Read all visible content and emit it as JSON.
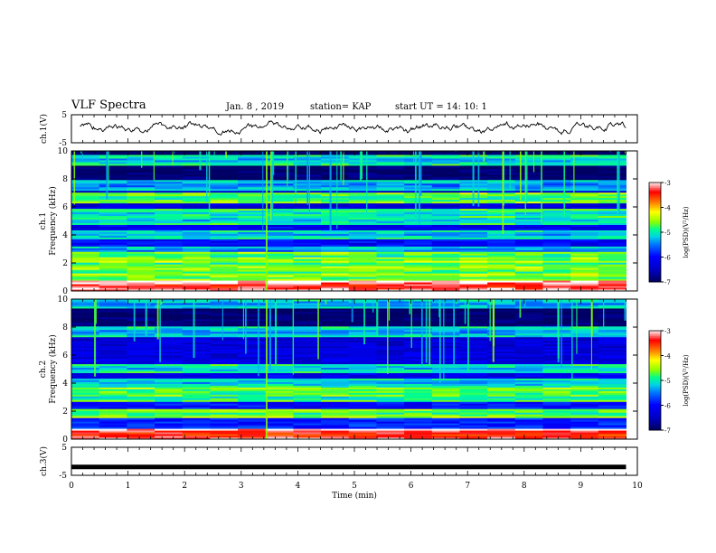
{
  "header": {
    "title": "VLF Spectra",
    "date": "Jan. 8 , 2019",
    "station": "station= KAP",
    "start": "start UT = 14: 10: 1"
  },
  "chart_data": [
    {
      "type": "line",
      "ylabel": "ch.1(V)",
      "ylim": [
        -5,
        5
      ],
      "yticks": [
        "5",
        "-5"
      ],
      "xlim": [
        0,
        10
      ],
      "series": [
        {
          "values": "noise waveform around 0 V, amplitude ~2 V, 0 to 9.8 min"
        }
      ]
    },
    {
      "type": "heatmap",
      "ylabel": "ch.1",
      "ylabel2": "Frequency (kHz)",
      "ylim": [
        0,
        10
      ],
      "yticks": [
        "0",
        "2",
        "4",
        "6",
        "8",
        "10"
      ],
      "xlim": [
        0,
        9.8
      ],
      "colorbar": {
        "label": "log(PSD)(V²/Hz)",
        "range": [
          -7,
          -3
        ],
        "ticks": [
          "-3",
          "-4",
          "-5",
          "-6",
          "-7"
        ],
        "colors": [
          "#00008b",
          "#0000ff",
          "#00bfff",
          "#00ff7f",
          "#ffff00",
          "#ff0000",
          "#ffffff"
        ]
      },
      "bands_khz": [
        {
          "f": 0.3,
          "level": -3.5
        },
        {
          "f": 0.9,
          "level": -4.8
        },
        {
          "f": 1.3,
          "level": -4.9
        },
        {
          "f": 2.0,
          "level": -5.0
        },
        {
          "f": 2.4,
          "level": -5.0
        },
        {
          "f": 2.8,
          "level": -5.6
        },
        {
          "f": 4.0,
          "level": -5.4
        },
        {
          "f": 5.0,
          "level": -5.3
        },
        {
          "f": 5.5,
          "level": -5.2
        },
        {
          "f": 6.6,
          "level": -5.0
        },
        {
          "f": 7.5,
          "level": -5.6
        },
        {
          "f": 9.3,
          "level": -5.4
        }
      ]
    },
    {
      "type": "heatmap",
      "ylabel": "ch.2",
      "ylabel2": "Frequency (kHz)",
      "ylim": [
        0,
        10
      ],
      "yticks": [
        "0",
        "2",
        "4",
        "6",
        "8",
        "10"
      ],
      "xlim": [
        0,
        9.8
      ],
      "colorbar": {
        "label": "log(PSD)(V²/Hz)",
        "range": [
          -7,
          -3
        ],
        "ticks": [
          "-3",
          "-4",
          "-5",
          "-6",
          "-7"
        ],
        "colors": [
          "#00008b",
          "#0000ff",
          "#00bfff",
          "#00ff7f",
          "#ffff00",
          "#ff0000",
          "#ffffff"
        ]
      },
      "bands_khz": [
        {
          "f": 0.3,
          "level": -3.6
        },
        {
          "f": 1.8,
          "level": -4.9
        },
        {
          "f": 3.0,
          "level": -5.2
        },
        {
          "f": 3.3,
          "level": -5.0
        },
        {
          "f": 4.0,
          "level": -5.4
        },
        {
          "f": 5.0,
          "level": -5.3
        },
        {
          "f": 7.6,
          "level": -5.5
        },
        {
          "f": 9.6,
          "level": -5.5
        }
      ]
    },
    {
      "type": "line",
      "ylabel": "ch.3(V)",
      "ylim": [
        -5,
        5
      ],
      "yticks": [
        "5",
        "-5"
      ],
      "xlim": [
        0,
        10
      ],
      "series": [
        {
          "values": "constant level ~ -2 V, 0 to 9.8 min"
        }
      ]
    }
  ],
  "xaxis": {
    "label": "Time (min)",
    "ticks": [
      "0",
      "1",
      "2",
      "3",
      "4",
      "5",
      "6",
      "7",
      "8",
      "9",
      "10"
    ],
    "range": [
      0,
      10
    ]
  }
}
